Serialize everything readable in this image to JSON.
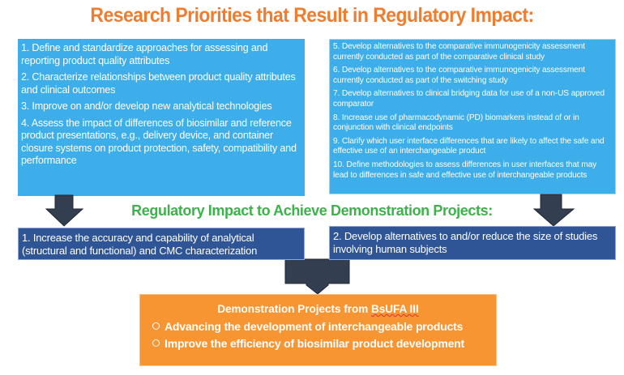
{
  "title": "Research Priorities that Result in Regulatory Impact:",
  "research_priorities_left": [
    "1. Define and standardize approaches for assessing and reporting product quality attributes",
    "2. Characterize relationships between product quality attributes and clinical outcomes",
    "3. Improve on and/or develop new analytical technologies",
    "4. Assess the impact of differences of biosimilar and reference product presentations, e.g., delivery device, and container closure systems on product protection, safety, compatibility and performance"
  ],
  "research_priorities_right": [
    "5. Develop alternatives to the comparative immunogenicity assessment currently conducted as part of the comparative clinical study",
    "6. Develop alternatives to the comparative immunogenicity assessment currently conducted as part of the switching study",
    "7. Develop alternatives to clinical bridging data for use of a non-US approved comparator",
    "8. Increase use of pharmacodynamic (PD) biomarkers instead of or in conjunction with clinical endpoints",
    "9. Clarify which user interface differences that are likely to affect the safe and effective use of an interchangeable product",
    "10. Define methodologies to assess differences in user interfaces that may lead to differences in safe and effective use of interchangeable products"
  ],
  "subtitle": "Regulatory Impact to Achieve Demonstration Projects:",
  "regulatory_impact": [
    "1. Increase the accuracy and capability of analytical (structural and functional) and CMC characterization",
    "2. Develop alternatives to and/or reduce the size of studies involving human subjects"
  ],
  "demonstration": {
    "heading_prefix": "Demonstration Projects from ",
    "heading_term": "BsUFA III",
    "items": [
      "Advancing the development of interchangeable products",
      "Improve the efficiency of biosimilar product development"
    ]
  },
  "colors": {
    "title": "#ed7d31",
    "subtitle": "#3cb24a",
    "light_blue": "#3daeea",
    "dark_blue": "#2f5597",
    "orange": "#f79532",
    "arrow": "#333f50"
  },
  "icons": [
    "down-arrow",
    "down-arrow",
    "down-arrow",
    "hollow-circle-bullet"
  ]
}
